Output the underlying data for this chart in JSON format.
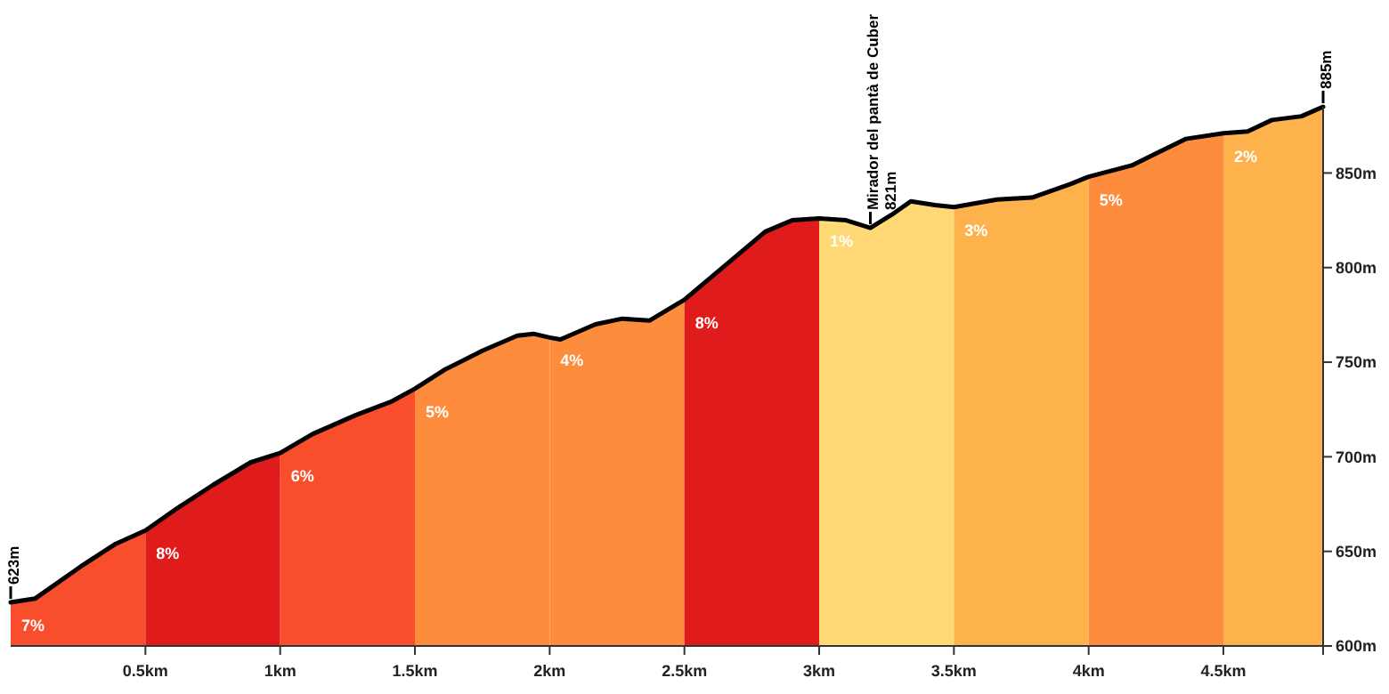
{
  "chart_data": {
    "type": "area",
    "xlim": [
      0,
      4.87
    ],
    "ylim": [
      600,
      885
    ],
    "xticks": [
      {
        "value": 0.5,
        "label": "0.5km"
      },
      {
        "value": 1,
        "label": "1km"
      },
      {
        "value": 1.5,
        "label": "1.5km"
      },
      {
        "value": 2,
        "label": "2km"
      },
      {
        "value": 2.5,
        "label": "2.5km"
      },
      {
        "value": 3,
        "label": "3km"
      },
      {
        "value": 3.5,
        "label": "3.5km"
      },
      {
        "value": 4,
        "label": "4km"
      },
      {
        "value": 4.5,
        "label": "4.5km"
      }
    ],
    "yticks": [
      {
        "value": 600,
        "label": "600m"
      },
      {
        "value": 650,
        "label": "650m"
      },
      {
        "value": 700,
        "label": "700m"
      },
      {
        "value": 750,
        "label": "750m"
      },
      {
        "value": 800,
        "label": "800m"
      },
      {
        "value": 850,
        "label": "850m"
      }
    ],
    "grid": false,
    "series": [
      {
        "name": "7%",
        "color": "#f94e2c",
        "x": [
          0,
          0.09,
          0.26,
          0.39,
          0.5
        ],
        "values": [
          623,
          625,
          642,
          654,
          661
        ]
      },
      {
        "name": "8%",
        "color": "#e01b1b",
        "x": [
          0.5,
          0.62,
          0.75,
          0.89,
          1
        ],
        "values": [
          661,
          673,
          685,
          697,
          702
        ]
      },
      {
        "name": "6%",
        "color": "#f94e2c",
        "x": [
          1,
          1.12,
          1.28,
          1.41,
          1.5
        ],
        "values": [
          702,
          712,
          722,
          729,
          736
        ]
      },
      {
        "name": "5%",
        "color": "#fd8c3c",
        "x": [
          1.5,
          1.61,
          1.75,
          1.88,
          1.94,
          2
        ],
        "values": [
          736,
          746,
          756,
          764,
          765,
          763
        ]
      },
      {
        "name": "4%",
        "color": "#fd8c3c",
        "x": [
          2,
          2.04,
          2.17,
          2.27,
          2.37,
          2.5
        ],
        "values": [
          763,
          762,
          770,
          773,
          772,
          783
        ]
      },
      {
        "name": "8%",
        "color": "#e01b1b",
        "x": [
          2.5,
          2.6,
          2.7,
          2.8,
          2.9,
          3
        ],
        "values": [
          783,
          795,
          807,
          819,
          825,
          826
        ]
      },
      {
        "name": "1%",
        "color": "#fed976",
        "x": [
          3,
          3.1,
          3.19,
          3.27,
          3.34,
          3.43,
          3.5
        ],
        "values": [
          826,
          825,
          821,
          828,
          835,
          833,
          832
        ]
      },
      {
        "name": "3%",
        "color": "#feb24c",
        "x": [
          3.5,
          3.66,
          3.79,
          3.93,
          4
        ],
        "values": [
          832,
          836,
          837,
          844,
          848
        ]
      },
      {
        "name": "5%",
        "color": "#fd8c3c",
        "x": [
          4,
          4.16,
          4.26,
          4.36,
          4.5
        ],
        "values": [
          848,
          854,
          861,
          868,
          871
        ]
      },
      {
        "name": "2%",
        "color": "#feb24c",
        "x": [
          4.5,
          4.59,
          4.68,
          4.79,
          4.87
        ],
        "values": [
          871,
          872,
          878,
          880,
          885
        ]
      },
      {
        "type": "line",
        "color": "#000000",
        "line_style": "solid",
        "x": [
          0,
          0.09,
          0.26,
          0.39,
          0.5,
          0.62,
          0.75,
          0.89,
          1,
          1.12,
          1.28,
          1.41,
          1.5,
          1.61,
          1.75,
          1.88,
          1.94,
          2,
          2.04,
          2.17,
          2.27,
          2.37,
          2.5,
          2.6,
          2.7,
          2.8,
          2.9,
          3,
          3.1,
          3.19,
          3.27,
          3.34,
          3.43,
          3.5,
          3.66,
          3.79,
          3.93,
          4,
          4.16,
          4.26,
          4.36,
          4.5,
          4.59,
          4.68,
          4.79,
          4.87
        ],
        "values": [
          623,
          625,
          642,
          654,
          661,
          673,
          685,
          697,
          702,
          712,
          722,
          729,
          736,
          746,
          756,
          764,
          765,
          763,
          762,
          770,
          773,
          772,
          783,
          795,
          807,
          819,
          825,
          826,
          825,
          821,
          828,
          835,
          833,
          832,
          836,
          837,
          844,
          848,
          854,
          861,
          868,
          871,
          872,
          878,
          880,
          885
        ]
      }
    ],
    "annotations": [
      {
        "text": "623m",
        "x": 0,
        "y": 623
      },
      {
        "text": "Mirador del pantà de Cuber",
        "x": 3.19,
        "y": 821
      },
      {
        "text": "821m",
        "x": 3.19,
        "y": 821
      },
      {
        "text": "885m",
        "x": 4.87,
        "y": 885
      }
    ]
  }
}
